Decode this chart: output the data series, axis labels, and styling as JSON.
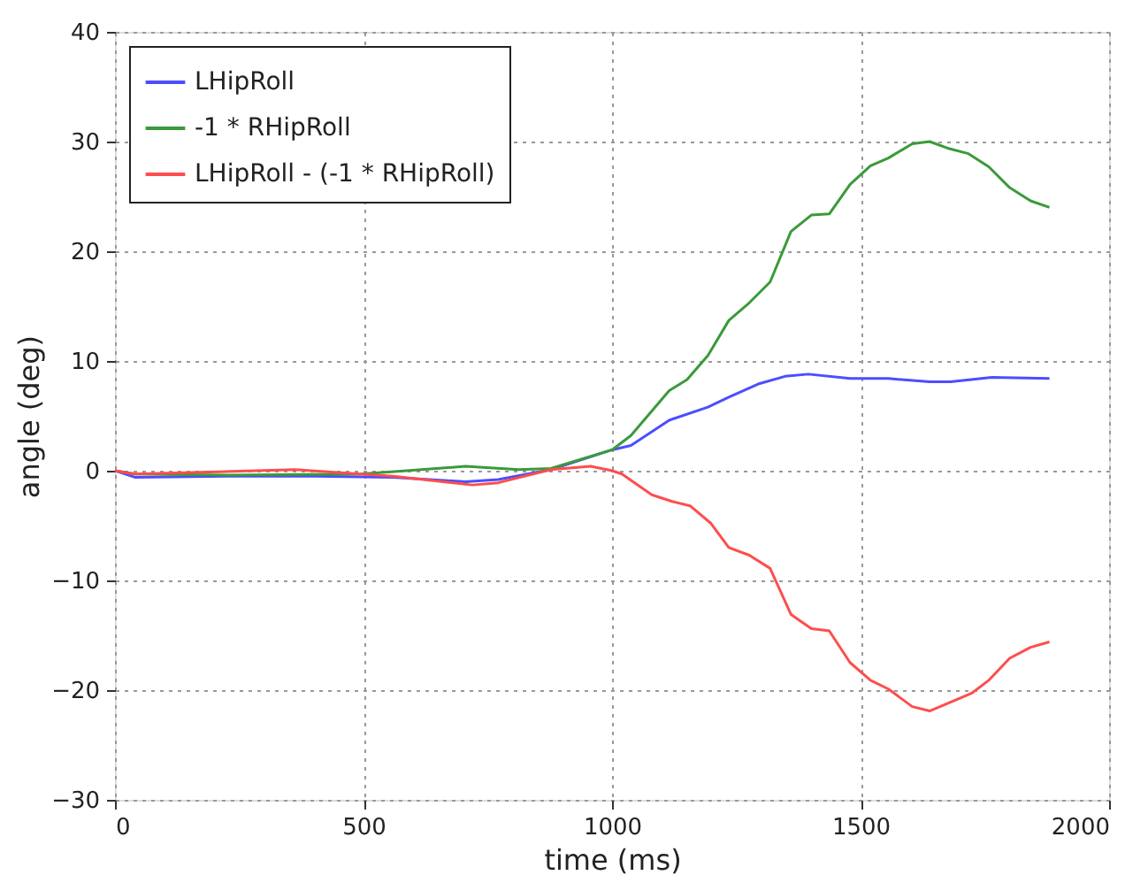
{
  "chart_data": {
    "type": "line",
    "xlabel": "time (ms)",
    "ylabel": "angle (deg)",
    "xlim": [
      0,
      2000
    ],
    "ylim": [
      -30,
      40
    ],
    "xticks": [
      0,
      500,
      1000,
      1500,
      2000
    ],
    "yticks": [
      -30,
      -20,
      -10,
      0,
      10,
      20,
      30,
      40
    ],
    "grid": true,
    "legend": "top left",
    "line_style": "solid",
    "marker": "none",
    "series": [
      {
        "name": "LHipRoll",
        "color": "#4d4dff",
        "x": [
          0,
          40,
          229,
          401,
          560,
          705,
          771,
          877,
          1000,
          1038,
          1115,
          1193,
          1235,
          1294,
          1348,
          1395,
          1479,
          1556,
          1639,
          1681,
          1764,
          1880
        ],
        "values": [
          0,
          -0.6,
          -0.5,
          -0.5,
          -0.6,
          -1.0,
          -0.8,
          0.1,
          1.9,
          2.3,
          4.6,
          5.8,
          6.7,
          7.9,
          8.6,
          8.8,
          8.4,
          8.4,
          8.1,
          8.1,
          8.5,
          8.4
        ]
      },
      {
        "name": "-1 * RHipRoll",
        "color": "#3a9a3a",
        "x": [
          0,
          40,
          229,
          494,
          587,
          705,
          812,
          877,
          1000,
          1038,
          1115,
          1151,
          1193,
          1235,
          1276,
          1318,
          1360,
          1401,
          1437,
          1479,
          1520,
          1556,
          1604,
          1639,
          1675,
          1717,
          1758,
          1800,
          1842,
          1880
        ],
        "values": [
          0,
          -0.3,
          -0.4,
          -0.3,
          0,
          0.4,
          0.1,
          0.2,
          1.9,
          3.2,
          7.3,
          8.3,
          10.5,
          13.7,
          15.3,
          17.2,
          21.8,
          23.3,
          23.4,
          26.1,
          27.8,
          28.5,
          29.8,
          30.0,
          29.4,
          28.9,
          27.7,
          25.8,
          24.6,
          24.0
        ]
      },
      {
        "name": "LHipRoll - (-1 * RHipRoll)",
        "color": "#ff4d4d",
        "x": [
          0,
          40,
          362,
          560,
          719,
          771,
          877,
          957,
          1000,
          1020,
          1080,
          1121,
          1157,
          1199,
          1235,
          1276,
          1318,
          1360,
          1401,
          1437,
          1479,
          1520,
          1556,
          1604,
          1639,
          1681,
          1723,
          1758,
          1800,
          1842,
          1880
        ],
        "values": [
          0,
          -0.3,
          0.1,
          -0.5,
          -1.3,
          -1.1,
          0.1,
          0.4,
          0,
          -0.3,
          -2.2,
          -2.8,
          -3.2,
          -4.8,
          -7.0,
          -7.7,
          -8.9,
          -13.1,
          -14.4,
          -14.6,
          -17.5,
          -19.1,
          -19.9,
          -21.5,
          -21.9,
          -21.1,
          -20.3,
          -19.1,
          -17.1,
          -16.1,
          -15.6
        ]
      }
    ]
  }
}
